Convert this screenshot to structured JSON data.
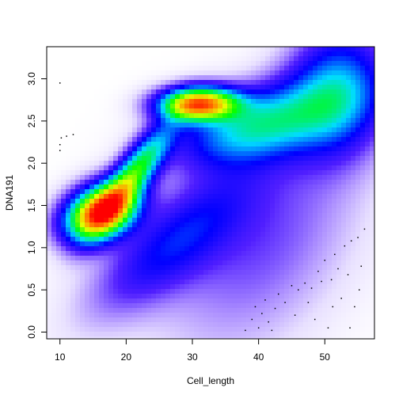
{
  "chart_data": {
    "type": "heatmap",
    "title": "",
    "xlabel": "Cell_length",
    "ylabel": "DNA191",
    "xlim": [
      8,
      57.5
    ],
    "ylim": [
      -0.08,
      3.38
    ],
    "x_ticks": [
      10,
      20,
      30,
      40,
      50
    ],
    "y_ticks": [
      0.0,
      0.5,
      1.0,
      1.5,
      2.0,
      2.5,
      3.0
    ],
    "x_tick_labels": [
      "10",
      "20",
      "30",
      "40",
      "50"
    ],
    "y_tick_labels": [
      "0.0",
      "0.5",
      "1.0",
      "1.5",
      "2.0",
      "2.5",
      "3.0"
    ],
    "grid": false,
    "legend": "none",
    "colormap": [
      "#ffffff",
      "#d9ccff",
      "#9a80ff",
      "#2a00ff",
      "#0000ff",
      "#00e5ff",
      "#00ff00",
      "#ffff00",
      "#ff8000",
      "#ff0000"
    ],
    "density_peaks": [
      {
        "x": 16,
        "y": 1.42,
        "level": "max"
      },
      {
        "x": 31,
        "y": 2.7,
        "level": "max"
      }
    ],
    "outliers": [
      {
        "x": 10,
        "y": 2.95
      },
      {
        "x": 10,
        "y": 2.22
      },
      {
        "x": 10,
        "y": 2.15
      },
      {
        "x": 10.2,
        "y": 2.3
      },
      {
        "x": 11,
        "y": 2.32
      },
      {
        "x": 12,
        "y": 2.34
      },
      {
        "x": 38,
        "y": 0.02
      },
      {
        "x": 39,
        "y": 0.15
      },
      {
        "x": 39.5,
        "y": 0.3
      },
      {
        "x": 40,
        "y": 0.05
      },
      {
        "x": 40.5,
        "y": 0.22
      },
      {
        "x": 41,
        "y": 0.38
      },
      {
        "x": 41.5,
        "y": 0.12
      },
      {
        "x": 42,
        "y": 0.02
      },
      {
        "x": 42.5,
        "y": 0.28
      },
      {
        "x": 43,
        "y": 0.45
      },
      {
        "x": 44,
        "y": 0.35
      },
      {
        "x": 45,
        "y": 0.55
      },
      {
        "x": 45.5,
        "y": 0.2
      },
      {
        "x": 46,
        "y": 0.5
      },
      {
        "x": 47,
        "y": 0.58
      },
      {
        "x": 47.5,
        "y": 0.35
      },
      {
        "x": 48,
        "y": 0.52
      },
      {
        "x": 48.5,
        "y": 0.15
      },
      {
        "x": 49,
        "y": 0.72
      },
      {
        "x": 49.5,
        "y": 0.6
      },
      {
        "x": 50,
        "y": 0.85
      },
      {
        "x": 50.5,
        "y": 0.05
      },
      {
        "x": 51,
        "y": 0.62
      },
      {
        "x": 51.5,
        "y": 0.92
      },
      {
        "x": 52,
        "y": 0.75
      },
      {
        "x": 52.5,
        "y": 0.4
      },
      {
        "x": 53,
        "y": 1.02
      },
      {
        "x": 53.5,
        "y": 0.68
      },
      {
        "x": 54,
        "y": 1.08
      },
      {
        "x": 54.5,
        "y": 0.3
      },
      {
        "x": 55,
        "y": 1.12
      },
      {
        "x": 55.5,
        "y": 0.78
      },
      {
        "x": 56,
        "y": 1.22
      },
      {
        "x": 55.2,
        "y": 0.5
      },
      {
        "x": 53.8,
        "y": 0.05
      },
      {
        "x": 51.2,
        "y": 0.3
      }
    ]
  }
}
